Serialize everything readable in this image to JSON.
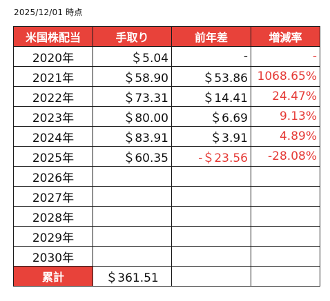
{
  "timestamp": "2025/12/01 時点",
  "headers": {
    "year": "米国株配当",
    "payment": "手取り",
    "diff": "前年差",
    "rate": "増減率"
  },
  "rows": [
    {
      "year": "2020年",
      "payment": "＄5.04",
      "diff": "-",
      "rate": "-"
    },
    {
      "year": "2021年",
      "payment": "＄58.90",
      "diff": "＄53.86",
      "rate": "1068.65%"
    },
    {
      "year": "2022年",
      "payment": "＄73.31",
      "diff": "＄14.41",
      "rate": "24.47%"
    },
    {
      "year": "2023年",
      "payment": "＄80.00",
      "diff": "＄6.69",
      "rate": "9.13%"
    },
    {
      "year": "2024年",
      "payment": "＄83.91",
      "diff": "＄3.91",
      "rate": "4.89%"
    },
    {
      "year": "2025年",
      "payment": "＄60.35",
      "diff": "-＄23.56",
      "rate": "-28.08%"
    },
    {
      "year": "2026年",
      "payment": "",
      "diff": "",
      "rate": ""
    },
    {
      "year": "2027年",
      "payment": "",
      "diff": "",
      "rate": ""
    },
    {
      "year": "2028年",
      "payment": "",
      "diff": "",
      "rate": ""
    },
    {
      "year": "2029年",
      "payment": "",
      "diff": "",
      "rate": ""
    },
    {
      "year": "2030年",
      "payment": "",
      "diff": "",
      "rate": ""
    }
  ],
  "total": {
    "label": "累計",
    "value": "＄361.51"
  },
  "colors": {
    "header_bg": "#e8423a",
    "header_text": "#ffffff",
    "negative_text": "#e53935",
    "border": "#1a1a1a"
  }
}
